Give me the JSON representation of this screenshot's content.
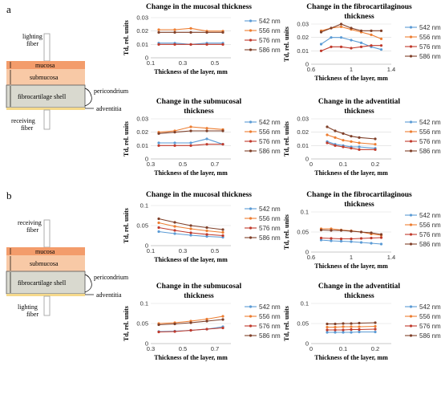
{
  "panels": [
    {
      "letter": "a",
      "diagram": {
        "top_fiber": "lighting\nfiber",
        "bottom_fiber": "receiving\nfiber",
        "layers": {
          "mucosa": "mucosa",
          "submucosa": "submucosa",
          "fibrocartilage": "fibrocartilage  shell",
          "perichondrium": "pericondrium",
          "adventitia": "adventitia"
        }
      }
    },
    {
      "letter": "b",
      "diagram": {
        "top_fiber": "receiving\nfiber",
        "bottom_fiber": "lighting\nfiber",
        "layers": {
          "mucosa": "mucosa",
          "submucosa": "submucosa",
          "fibrocartilage": "fibrocartilage  shell",
          "perichondrium": "pericondrium",
          "adventitia": "adventitia"
        }
      }
    }
  ],
  "colors": {
    "542 nm": "#5b9bd5",
    "556 nm": "#ed7d31",
    "576 nm": "#c0392b",
    "586 nm": "#7f3f28"
  },
  "chart_data": [
    {
      "type": "line",
      "title": "Change in the mucosal thickness",
      "xlabel": "Thickness of the layer, mm",
      "ylabel": "Td, rel. units",
      "xlim": [
        0.1,
        0.6
      ],
      "xticks": [
        0.1,
        0.3,
        0.5
      ],
      "ylim": [
        0,
        0.03
      ],
      "yticks": [
        0,
        0.01,
        0.02,
        0.03
      ],
      "x": [
        0.15,
        0.25,
        0.35,
        0.45,
        0.55
      ],
      "series": [
        {
          "name": "542 nm",
          "values": [
            0.011,
            0.011,
            0.01,
            0.011,
            0.011
          ]
        },
        {
          "name": "556 nm",
          "values": [
            0.021,
            0.021,
            0.022,
            0.02,
            0.02
          ]
        },
        {
          "name": "576 nm",
          "values": [
            0.01,
            0.01,
            0.01,
            0.01,
            0.01
          ]
        },
        {
          "name": "586 nm",
          "values": [
            0.019,
            0.019,
            0.019,
            0.019,
            0.019
          ]
        }
      ]
    },
    {
      "type": "line",
      "title": "Change in the fibrocartilaginous thickness",
      "xlabel": "Thickness of the layer, mm",
      "ylabel": "Td, rel. units",
      "xlim": [
        0.6,
        1.4
      ],
      "xticks": [
        0.6,
        1,
        1.4
      ],
      "ylim": [
        0,
        0.03
      ],
      "yticks": [
        0,
        0.01,
        0.02,
        0.03
      ],
      "x": [
        0.7,
        0.8,
        0.9,
        1.0,
        1.1,
        1.2,
        1.3
      ],
      "series": [
        {
          "name": "542 nm",
          "values": [
            0.015,
            0.02,
            0.02,
            0.018,
            0.016,
            0.013,
            0.011
          ]
        },
        {
          "name": "556 nm",
          "values": [
            0.025,
            0.027,
            0.028,
            0.026,
            0.024,
            0.022,
            0.019
          ]
        },
        {
          "name": "576 nm",
          "values": [
            0.01,
            0.013,
            0.013,
            0.012,
            0.013,
            0.014,
            0.014
          ]
        },
        {
          "name": "586 nm",
          "values": [
            0.024,
            0.027,
            0.03,
            0.027,
            0.025,
            0.025,
            0.025
          ]
        }
      ]
    },
    {
      "type": "line",
      "title": "Change in the submucosal thickness",
      "xlabel": "Thickness of the layer, mm",
      "ylabel": "Td, rel. units",
      "xlim": [
        0.3,
        0.8
      ],
      "xticks": [
        0.3,
        0.5,
        0.7
      ],
      "ylim": [
        0,
        0.03
      ],
      "yticks": [
        0,
        0.01,
        0.02,
        0.03
      ],
      "x": [
        0.35,
        0.45,
        0.55,
        0.65,
        0.75
      ],
      "series": [
        {
          "name": "542 nm",
          "values": [
            0.012,
            0.012,
            0.012,
            0.015,
            0.011
          ]
        },
        {
          "name": "556 nm",
          "values": [
            0.02,
            0.021,
            0.024,
            0.023,
            0.022
          ]
        },
        {
          "name": "576 nm",
          "values": [
            0.01,
            0.01,
            0.01,
            0.011,
            0.011
          ]
        },
        {
          "name": "586 nm",
          "values": [
            0.019,
            0.02,
            0.021,
            0.021,
            0.021
          ]
        }
      ]
    },
    {
      "type": "line",
      "title": "Change in the adventitial thickness",
      "xlabel": "Thickness of the layer, mm",
      "ylabel": "Td, rel. units",
      "xlim": [
        0,
        0.25
      ],
      "xticks": [
        0,
        0.1,
        0.2
      ],
      "ylim": [
        0,
        0.03
      ],
      "yticks": [
        0,
        0.01,
        0.02,
        0.03
      ],
      "x": [
        0.05,
        0.075,
        0.1,
        0.125,
        0.15,
        0.2
      ],
      "series": [
        {
          "name": "542 nm",
          "values": [
            0.013,
            0.011,
            0.01,
            0.009,
            0.009,
            0.008
          ]
        },
        {
          "name": "556 nm",
          "values": [
            0.018,
            0.016,
            0.014,
            0.013,
            0.012,
            0.011
          ]
        },
        {
          "name": "576 nm",
          "values": [
            0.012,
            0.01,
            0.009,
            0.008,
            0.007,
            0.007
          ]
        },
        {
          "name": "586 nm",
          "values": [
            0.024,
            0.021,
            0.019,
            0.017,
            0.016,
            0.015
          ]
        }
      ]
    },
    {
      "type": "line",
      "title": "Change in the mucosal thickness",
      "xlabel": "Thickness of the layer, mm",
      "ylabel": "Td, rel. units",
      "xlim": [
        0.1,
        0.6
      ],
      "xticks": [
        0.1,
        0.3,
        0.5
      ],
      "ylim": [
        0,
        0.1
      ],
      "yticks": [
        0,
        0.05,
        0.1
      ],
      "x": [
        0.15,
        0.25,
        0.35,
        0.45,
        0.55
      ],
      "series": [
        {
          "name": "542 nm",
          "values": [
            0.035,
            0.03,
            0.026,
            0.023,
            0.021
          ]
        },
        {
          "name": "556 nm",
          "values": [
            0.057,
            0.048,
            0.042,
            0.037,
            0.033
          ]
        },
        {
          "name": "576 nm",
          "values": [
            0.045,
            0.038,
            0.032,
            0.028,
            0.025
          ]
        },
        {
          "name": "586 nm",
          "values": [
            0.067,
            0.058,
            0.05,
            0.045,
            0.04
          ]
        }
      ]
    },
    {
      "type": "line",
      "title": "Change in the fibrocartilaginous thickness",
      "xlabel": "Thickness of the layer, mm",
      "ylabel": "Td, rel. units",
      "xlim": [
        0.6,
        1.4
      ],
      "xticks": [
        0.6,
        1,
        1.4
      ],
      "ylim": [
        0,
        0.1
      ],
      "yticks": [
        0,
        0.05,
        0.1
      ],
      "x": [
        0.7,
        0.8,
        0.9,
        1.0,
        1.1,
        1.2,
        1.3
      ],
      "series": [
        {
          "name": "542 nm",
          "values": [
            0.03,
            0.028,
            0.027,
            0.026,
            0.024,
            0.022,
            0.02
          ]
        },
        {
          "name": "556 nm",
          "values": [
            0.058,
            0.058,
            0.055,
            0.053,
            0.05,
            0.045,
            0.042
          ]
        },
        {
          "name": "576 nm",
          "values": [
            0.035,
            0.034,
            0.033,
            0.033,
            0.034,
            0.035,
            0.036
          ]
        },
        {
          "name": "586 nm",
          "values": [
            0.055,
            0.054,
            0.054,
            0.052,
            0.05,
            0.048,
            0.044
          ]
        }
      ]
    },
    {
      "type": "line",
      "title": "Change in the submucosal thickness",
      "xlabel": "Thickness of the layer, mm",
      "ylabel": "Td, rel. units",
      "xlim": [
        0.3,
        0.8
      ],
      "xticks": [
        0.3,
        0.5,
        0.7
      ],
      "ylim": [
        0,
        0.1
      ],
      "yticks": [
        0,
        0.05,
        0.1
      ],
      "x": [
        0.35,
        0.45,
        0.55,
        0.65,
        0.75
      ],
      "series": [
        {
          "name": "542 nm",
          "values": [
            0.03,
            0.031,
            0.033,
            0.036,
            0.042
          ]
        },
        {
          "name": "556 nm",
          "values": [
            0.05,
            0.052,
            0.056,
            0.061,
            0.068
          ]
        },
        {
          "name": "576 nm",
          "values": [
            0.029,
            0.03,
            0.033,
            0.036,
            0.039
          ]
        },
        {
          "name": "586 nm",
          "values": [
            0.047,
            0.049,
            0.052,
            0.056,
            0.06
          ]
        }
      ]
    },
    {
      "type": "line",
      "title": "Change in the adventitial thickness",
      "xlabel": "Thickness of the layer, mm",
      "ylabel": "Td, rel. units",
      "xlim": [
        0,
        0.25
      ],
      "xticks": [
        0,
        0.1,
        0.2
      ],
      "ylim": [
        0,
        0.1
      ],
      "yticks": [
        0,
        0.05,
        0.1
      ],
      "x": [
        0.05,
        0.075,
        0.1,
        0.125,
        0.15,
        0.2
      ],
      "series": [
        {
          "name": "542 nm",
          "values": [
            0.028,
            0.028,
            0.028,
            0.028,
            0.029,
            0.029
          ]
        },
        {
          "name": "556 nm",
          "values": [
            0.041,
            0.041,
            0.042,
            0.042,
            0.042,
            0.043
          ]
        },
        {
          "name": "576 nm",
          "values": [
            0.034,
            0.034,
            0.034,
            0.035,
            0.035,
            0.036
          ]
        },
        {
          "name": "586 nm",
          "values": [
            0.049,
            0.049,
            0.05,
            0.05,
            0.051,
            0.052
          ]
        }
      ]
    }
  ]
}
